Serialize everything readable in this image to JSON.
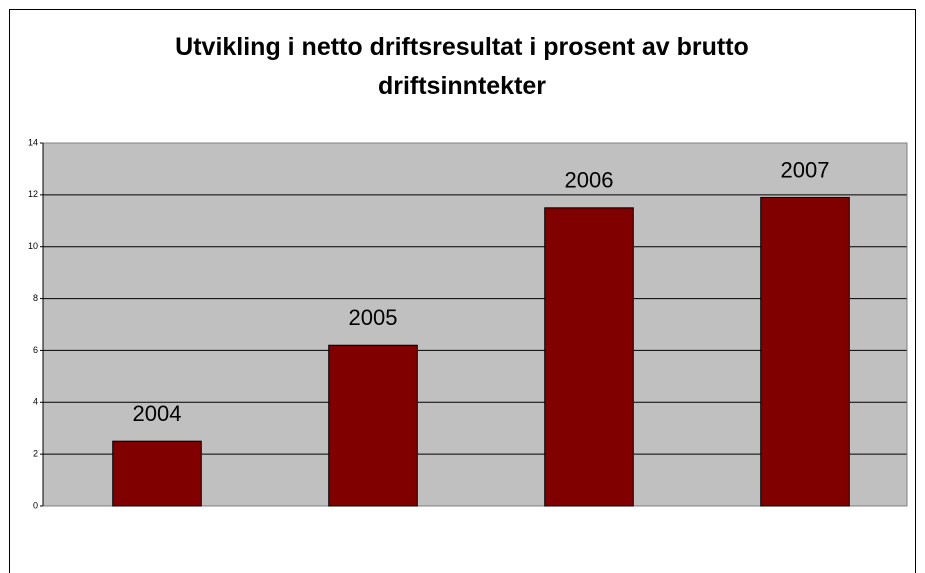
{
  "chart_data": {
    "type": "bar",
    "title": "Utvikling i netto driftsresultat i prosent av brutto driftsinntekter",
    "categories": [
      "2004",
      "2005",
      "2006",
      "2007"
    ],
    "values": [
      2.5,
      6.2,
      11.5,
      11.9
    ],
    "color": "#800000",
    "ylim": [
      0,
      14
    ],
    "yticks": [
      0,
      2,
      4,
      6,
      8,
      10,
      12,
      14
    ],
    "grid": true
  }
}
